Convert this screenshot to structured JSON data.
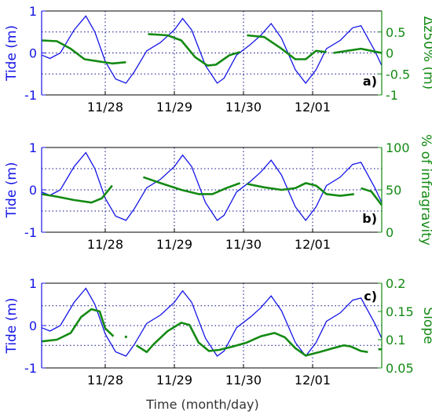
{
  "figure": {
    "xlabel": "Time (month/day)",
    "x_ticks": [
      "11/28",
      "11/29",
      "11/30",
      "12/01"
    ],
    "x_tick_positions": [
      1.0,
      2.0,
      3.0,
      4.0
    ],
    "x_range": [
      0.08,
      5.0
    ]
  },
  "colors": {
    "tide": "#1515e6",
    "secondary": "#138a13",
    "grid": "#0a0a8c"
  },
  "chart_data": [
    {
      "type": "line",
      "panel_label": "a)",
      "left_ylabel": "Tide (m)",
      "left_ylim": [
        -1,
        1
      ],
      "left_ticks": [
        "-1",
        "0",
        "1"
      ],
      "right_ylabel": "Δz50% (m)",
      "right_ylim": [
        -1,
        1
      ],
      "right_ticks": [
        "-1",
        "-0.5",
        "0",
        "0.5"
      ],
      "right_tick_values": [
        -1,
        -0.5,
        0,
        0.5
      ],
      "grid_right_values": [
        -0.5,
        0,
        0.5
      ],
      "series": [
        {
          "axis": "left",
          "points": [
            [
              0.08,
              -0.05
            ],
            [
              0.2,
              -0.13
            ],
            [
              0.35,
              0.0
            ],
            [
              0.55,
              0.55
            ],
            [
              0.72,
              0.88
            ],
            [
              0.85,
              0.5
            ],
            [
              1.0,
              -0.2
            ],
            [
              1.15,
              -0.62
            ],
            [
              1.3,
              -0.72
            ],
            [
              1.42,
              -0.45
            ],
            [
              1.6,
              0.05
            ],
            [
              1.8,
              0.25
            ],
            [
              2.0,
              0.55
            ],
            [
              2.12,
              0.82
            ],
            [
              2.25,
              0.55
            ],
            [
              2.45,
              -0.3
            ],
            [
              2.62,
              -0.72
            ],
            [
              2.72,
              -0.6
            ],
            [
              2.9,
              -0.05
            ],
            [
              3.1,
              0.2
            ],
            [
              3.25,
              0.42
            ],
            [
              3.4,
              0.7
            ],
            [
              3.55,
              0.35
            ],
            [
              3.75,
              -0.4
            ],
            [
              3.9,
              -0.72
            ],
            [
              4.05,
              -0.4
            ],
            [
              4.2,
              0.1
            ],
            [
              4.4,
              0.3
            ],
            [
              4.58,
              0.6
            ],
            [
              4.7,
              0.65
            ],
            [
              4.9,
              0.05
            ],
            [
              5.0,
              -0.3
            ]
          ]
        },
        {
          "axis": "right",
          "segments": [
            [
              [
                0.08,
                0.3
              ],
              [
                0.3,
                0.28
              ],
              [
                0.5,
                0.1
              ],
              [
                0.7,
                -0.15
              ],
              [
                0.9,
                -0.2
              ],
              [
                1.1,
                -0.25
              ],
              [
                1.3,
                -0.22
              ]
            ],
            [
              [
                1.62,
                0.45
              ],
              [
                1.9,
                0.42
              ],
              [
                2.1,
                0.3
              ],
              [
                2.3,
                -0.1
              ],
              [
                2.48,
                -0.3
              ],
              [
                2.6,
                -0.28
              ],
              [
                2.8,
                -0.05
              ],
              [
                2.95,
                0.02
              ]
            ],
            [
              [
                3.05,
                0.42
              ],
              [
                3.3,
                0.38
              ],
              [
                3.55,
                0.1
              ],
              [
                3.75,
                -0.15
              ],
              [
                3.9,
                -0.15
              ],
              [
                4.05,
                0.05
              ],
              [
                4.2,
                0.02
              ]
            ],
            [
              [
                4.3,
                0.0
              ],
              [
                4.5,
                0.05
              ],
              [
                4.7,
                0.1
              ],
              [
                4.85,
                0.05
              ],
              [
                5.0,
                0.0
              ]
            ]
          ]
        }
      ]
    },
    {
      "type": "line",
      "panel_label": "b)",
      "left_ylabel": "Tide (m)",
      "left_ylim": [
        -1,
        1
      ],
      "left_ticks": [
        "-1",
        "0",
        "1"
      ],
      "right_ylabel": "% of infragravity",
      "right_ylim": [
        0,
        100
      ],
      "right_ticks": [
        "0",
        "50",
        "100"
      ],
      "right_tick_values": [
        0,
        50,
        100
      ],
      "grid_right_values": [
        25,
        50,
        75
      ],
      "series": [
        {
          "axis": "left",
          "points": [
            [
              0.08,
              -0.05
            ],
            [
              0.2,
              -0.13
            ],
            [
              0.35,
              0.0
            ],
            [
              0.55,
              0.55
            ],
            [
              0.72,
              0.88
            ],
            [
              0.85,
              0.5
            ],
            [
              1.0,
              -0.2
            ],
            [
              1.15,
              -0.62
            ],
            [
              1.3,
              -0.72
            ],
            [
              1.42,
              -0.45
            ],
            [
              1.6,
              0.05
            ],
            [
              1.8,
              0.25
            ],
            [
              2.0,
              0.55
            ],
            [
              2.12,
              0.82
            ],
            [
              2.25,
              0.55
            ],
            [
              2.45,
              -0.3
            ],
            [
              2.62,
              -0.72
            ],
            [
              2.72,
              -0.6
            ],
            [
              2.9,
              -0.05
            ],
            [
              3.1,
              0.2
            ],
            [
              3.25,
              0.42
            ],
            [
              3.4,
              0.7
            ],
            [
              3.55,
              0.35
            ],
            [
              3.75,
              -0.4
            ],
            [
              3.9,
              -0.72
            ],
            [
              4.05,
              -0.4
            ],
            [
              4.2,
              0.1
            ],
            [
              4.4,
              0.3
            ],
            [
              4.58,
              0.6
            ],
            [
              4.7,
              0.65
            ],
            [
              4.9,
              0.05
            ],
            [
              5.0,
              -0.3
            ]
          ]
        },
        {
          "axis": "right",
          "segments": [
            [
              [
                0.08,
                45
              ],
              [
                0.3,
                42
              ],
              [
                0.55,
                38
              ],
              [
                0.8,
                35
              ],
              [
                0.95,
                40
              ],
              [
                1.1,
                55
              ]
            ],
            [
              [
                1.55,
                65
              ],
              [
                1.8,
                58
              ],
              [
                2.1,
                50
              ],
              [
                2.35,
                45
              ],
              [
                2.55,
                45
              ],
              [
                2.75,
                52
              ],
              [
                2.95,
                58
              ]
            ],
            [
              [
                3.05,
                57
              ],
              [
                3.3,
                53
              ],
              [
                3.55,
                50
              ],
              [
                3.75,
                52
              ],
              [
                3.9,
                58
              ],
              [
                4.05,
                55
              ],
              [
                4.2,
                45
              ],
              [
                4.4,
                43
              ],
              [
                4.6,
                45
              ]
            ],
            [
              [
                4.7,
                52
              ],
              [
                4.85,
                48
              ],
              [
                5.0,
                32
              ]
            ]
          ]
        }
      ]
    },
    {
      "type": "line",
      "panel_label": "c)",
      "left_ylabel": "Tide (m)",
      "left_ylim": [
        -1,
        1
      ],
      "left_ticks": [
        "-1",
        "0",
        "1"
      ],
      "right_ylabel": "Slope",
      "right_ylim": [
        0.05,
        0.2
      ],
      "right_ticks": [
        "0.05",
        "0.1",
        "0.15",
        "0.2"
      ],
      "right_tick_values": [
        0.05,
        0.1,
        0.15,
        0.2
      ],
      "grid_right_values": [
        0.09,
        0.125,
        0.16
      ],
      "series": [
        {
          "axis": "left",
          "points": [
            [
              0.08,
              -0.05
            ],
            [
              0.2,
              -0.13
            ],
            [
              0.35,
              0.0
            ],
            [
              0.55,
              0.55
            ],
            [
              0.72,
              0.88
            ],
            [
              0.85,
              0.5
            ],
            [
              1.0,
              -0.2
            ],
            [
              1.15,
              -0.62
            ],
            [
              1.3,
              -0.72
            ],
            [
              1.42,
              -0.45
            ],
            [
              1.6,
              0.05
            ],
            [
              1.8,
              0.25
            ],
            [
              2.0,
              0.55
            ],
            [
              2.12,
              0.82
            ],
            [
              2.25,
              0.55
            ],
            [
              2.45,
              -0.3
            ],
            [
              2.62,
              -0.72
            ],
            [
              2.72,
              -0.6
            ],
            [
              2.9,
              -0.05
            ],
            [
              3.1,
              0.2
            ],
            [
              3.25,
              0.42
            ],
            [
              3.4,
              0.7
            ],
            [
              3.55,
              0.35
            ],
            [
              3.75,
              -0.4
            ],
            [
              3.9,
              -0.72
            ],
            [
              4.05,
              -0.4
            ],
            [
              4.2,
              0.1
            ],
            [
              4.4,
              0.3
            ],
            [
              4.58,
              0.6
            ],
            [
              4.7,
              0.65
            ],
            [
              4.9,
              0.05
            ],
            [
              5.0,
              -0.3
            ]
          ]
        },
        {
          "axis": "right",
          "segments": [
            [
              [
                0.08,
                0.097
              ],
              [
                0.3,
                0.1
              ],
              [
                0.5,
                0.112
              ],
              [
                0.65,
                0.14
              ],
              [
                0.8,
                0.154
              ],
              [
                0.92,
                0.15
              ],
              [
                1.0,
                0.12
              ],
              [
                1.12,
                0.106
              ]
            ],
            [
              [
                1.3,
                0.105
              ]
            ],
            [
              [
                1.45,
                0.09
              ],
              [
                1.6,
                0.078
              ],
              [
                1.7,
                0.092
              ],
              [
                1.9,
                0.115
              ],
              [
                2.1,
                0.13
              ],
              [
                2.22,
                0.126
              ],
              [
                2.35,
                0.095
              ],
              [
                2.5,
                0.08
              ],
              [
                2.65,
                0.082
              ],
              [
                2.85,
                0.088
              ],
              [
                3.05,
                0.095
              ],
              [
                3.25,
                0.106
              ],
              [
                3.45,
                0.112
              ],
              [
                3.6,
                0.104
              ],
              [
                3.75,
                0.085
              ],
              [
                3.9,
                0.072
              ],
              [
                4.1,
                0.078
              ],
              [
                4.3,
                0.085
              ],
              [
                4.45,
                0.09
              ],
              [
                4.55,
                0.088
              ],
              [
                4.7,
                0.08
              ],
              [
                4.8,
                0.078
              ]
            ],
            [
              [
                4.95,
                0.083
              ],
              [
                5.0,
                0.083
              ]
            ]
          ]
        }
      ]
    }
  ]
}
